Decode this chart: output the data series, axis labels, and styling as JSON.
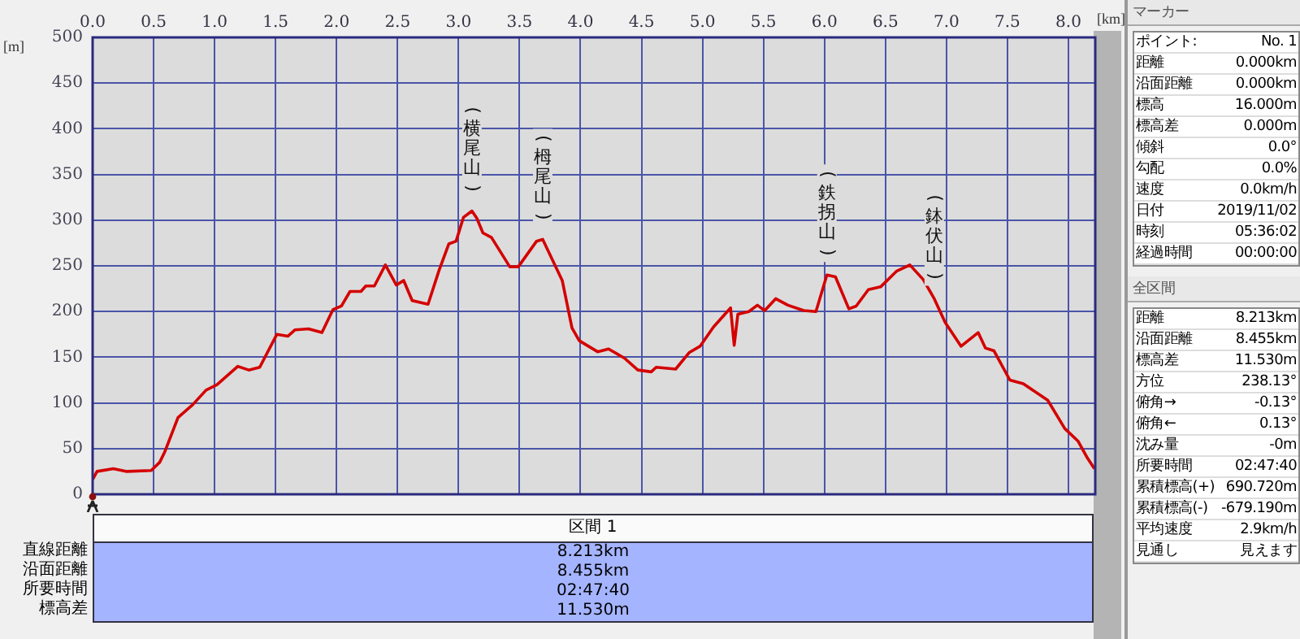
{
  "chart_data": {
    "type": "line",
    "xlabel": "[km]",
    "ylabel": "[m]",
    "x": [
      0,
      0.036,
      0.17,
      0.28,
      0.48,
      0.55,
      0.59,
      0.7,
      0.82,
      0.93,
      1.02,
      1.19,
      1.28,
      1.37,
      1.51,
      1.6,
      1.66,
      1.77,
      1.88,
      1.97,
      2.04,
      2.11,
      2.2,
      2.24,
      2.31,
      2.4,
      2.49,
      2.55,
      2.62,
      2.75,
      2.84,
      2.92,
      2.98,
      3.04,
      3.11,
      3.15,
      3.2,
      3.27,
      3.42,
      3.49,
      3.64,
      3.69,
      3.85,
      3.93,
      3.99,
      4.14,
      4.23,
      4.36,
      4.47,
      4.58,
      4.62,
      4.78,
      4.89,
      4.98,
      5.09,
      5.23,
      5.26,
      5.29,
      5.38,
      5.45,
      5.51,
      5.6,
      5.7,
      5.83,
      5.93,
      6.02,
      6.09,
      6.2,
      6.26,
      6.36,
      6.46,
      6.59,
      6.7,
      6.81,
      6.9,
      6.99,
      7.12,
      7.26,
      7.32,
      7.39,
      7.52,
      7.63,
      7.83,
      7.97,
      8.08,
      8.15,
      8.213
    ],
    "series": [
      {
        "color": "#d40000",
        "values": [
          16,
          25,
          28,
          25,
          26,
          35,
          46,
          84,
          98,
          114,
          120,
          140,
          136,
          139,
          175,
          173,
          180,
          181,
          177,
          202,
          206,
          222,
          222,
          228,
          228,
          251,
          229,
          234,
          212,
          208,
          245,
          274,
          277,
          303,
          310,
          302,
          286,
          281,
          249,
          249,
          277,
          279,
          234,
          182,
          168,
          156,
          159,
          149,
          136,
          134,
          139,
          137,
          155,
          162,
          183,
          204,
          163,
          197,
          200,
          207,
          201,
          214,
          207,
          201,
          200,
          240,
          238,
          203,
          206,
          224,
          227,
          244,
          251,
          235,
          214,
          188,
          162,
          177,
          160,
          157,
          125,
          121,
          103,
          72,
          58,
          41,
          28
        ]
      }
    ],
    "xlim": [
      0,
      8.22
    ],
    "ylim": [
      0,
      500
    ],
    "xticks": [
      {
        "value": 0,
        "label": "0.0"
      },
      0.5,
      {
        "value": 1,
        "label": "1.0"
      },
      1.5,
      {
        "value": 2,
        "label": "2.0"
      },
      2.5,
      {
        "value": 3,
        "label": "3.0"
      },
      3.5,
      {
        "value": 4,
        "label": "4.0"
      },
      4.5,
      {
        "value": 5,
        "label": "5.0"
      },
      5.5,
      {
        "value": 6,
        "label": "6.0"
      },
      6.5,
      {
        "value": 7,
        "label": "7.0"
      },
      7.5,
      {
        "value": 8,
        "label": "8.0"
      }
    ],
    "yticks": [
      0,
      50,
      100,
      150,
      200,
      250,
      300,
      350,
      400,
      450,
      500
    ],
    "grid": true,
    "marker": "none",
    "line_style": "solid",
    "legend": false,
    "annotations": [
      {
        "text": "(横尾山)",
        "x": 3.11,
        "y": 310
      },
      {
        "text": "(栂尾山)",
        "x": 3.69,
        "y": 279
      },
      {
        "text": "(鉄拐山)",
        "x": 6.02,
        "y": 240
      },
      {
        "text": "(鉢伏山)",
        "x": 6.9,
        "y": 214
      },
      "マーカー",
      "ポイント:",
      "No. 1",
      "距離",
      "0.000km",
      "沿面距離",
      "0.000km",
      "標高",
      "16.000m",
      "標高差",
      "0.000m",
      "傾斜",
      "0.0°",
      "勾配",
      "0.0%",
      "速度",
      "0.0km/h",
      "日付",
      "2019/11/02",
      "時刻",
      "05:36:02",
      "経過時間",
      "00:00:00",
      "全区間",
      "距離",
      "8.213km",
      "沿面距離",
      "8.455km",
      "標高差",
      "11.530m",
      "方位",
      "238.13°",
      "俯角→",
      "-0.13°",
      "俯角←",
      "0.13°",
      "沈み量",
      "-0m",
      "所要時間",
      "02:47:40",
      "累積標高(+)",
      "690.720m",
      "累積標高(-)",
      "-679.190m",
      "平均速度",
      "2.9km/h",
      "見通し",
      "見えます",
      "区間 1",
      "直線距離",
      "8.213km",
      "沿面距離",
      "8.455km",
      "所要時間",
      "02:47:40",
      "標高差",
      "11.530m"
    ]
  }
}
